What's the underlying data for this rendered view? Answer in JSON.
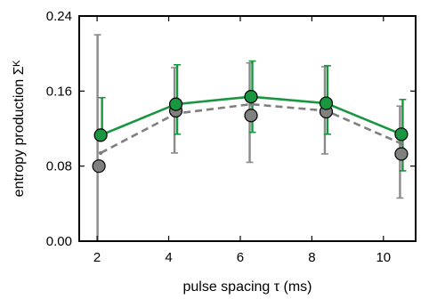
{
  "chart_data": {
    "type": "scatter",
    "title": "",
    "xlabel": "pulse spacing τ (ms)",
    "ylabel": "entropy production Σᴷ",
    "xlim": [
      1.5,
      10.9
    ],
    "ylim": [
      0.0,
      0.24
    ],
    "xticks": [
      2,
      4,
      6,
      8,
      10
    ],
    "yticks": [
      0.0,
      0.08,
      0.16,
      0.24
    ],
    "xtick_labels": [
      "2",
      "4",
      "6",
      "8",
      "10"
    ],
    "ytick_labels": [
      "0.00",
      "0.08",
      "0.16",
      "0.24"
    ],
    "grid": false,
    "legend": false,
    "series": [
      {
        "style": "solid line with filled circle markers and error bars",
        "color": "#1a9641",
        "marker_color": "#1a9641",
        "x": [
          2.1,
          4.2,
          6.3,
          8.4,
          10.5
        ],
        "y": [
          0.113,
          0.146,
          0.154,
          0.147,
          0.114
        ],
        "yerr_low": [
          0.113,
          0.114,
          0.116,
          0.114,
          0.075
        ],
        "yerr_high": [
          0.153,
          0.188,
          0.192,
          0.187,
          0.151
        ]
      },
      {
        "style": "dashed line with filled circle markers and error bars",
        "color": "#7f7f7f",
        "line_x": [
          2.1,
          4.2,
          6.3,
          8.4,
          10.5
        ],
        "line_y": [
          0.094,
          0.136,
          0.146,
          0.139,
          0.104
        ],
        "marker_color": "#808080",
        "x": [
          2.05,
          4.2,
          6.3,
          8.4,
          10.5
        ],
        "y": [
          0.08,
          0.139,
          0.134,
          0.138,
          0.093
        ],
        "yerr_low": [
          0.0,
          0.094,
          0.084,
          0.093,
          0.046
        ],
        "yerr_high": [
          0.22,
          0.185,
          0.19,
          0.186,
          0.144
        ]
      }
    ]
  }
}
